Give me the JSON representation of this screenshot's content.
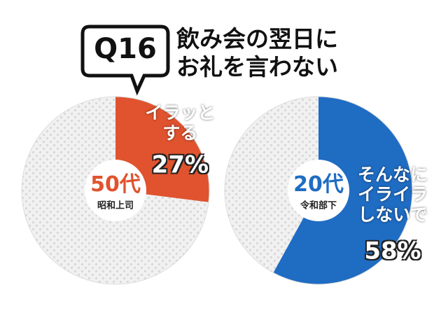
{
  "badge": "Q16",
  "title_lines": [
    "飲み会の翌日に",
    "お礼を言わない"
  ],
  "chart_data": [
    {
      "type": "pie",
      "center_label": "50代",
      "center_sublabel": "昭和上司",
      "categories": [
        "イラッとする",
        null
      ],
      "values": [
        27,
        73
      ],
      "value_labels": [
        "27%",
        null
      ],
      "colors": [
        "#e0532e",
        "#f1f1f1"
      ]
    },
    {
      "type": "pie",
      "center_label": "20代",
      "center_sublabel": "令和部下",
      "categories": [
        "そんなにイライラしないで",
        null
      ],
      "values": [
        58,
        42
      ],
      "value_labels": [
        "58%",
        null
      ],
      "colors": [
        "#1f6cc3",
        "#f1f1f1"
      ]
    }
  ]
}
